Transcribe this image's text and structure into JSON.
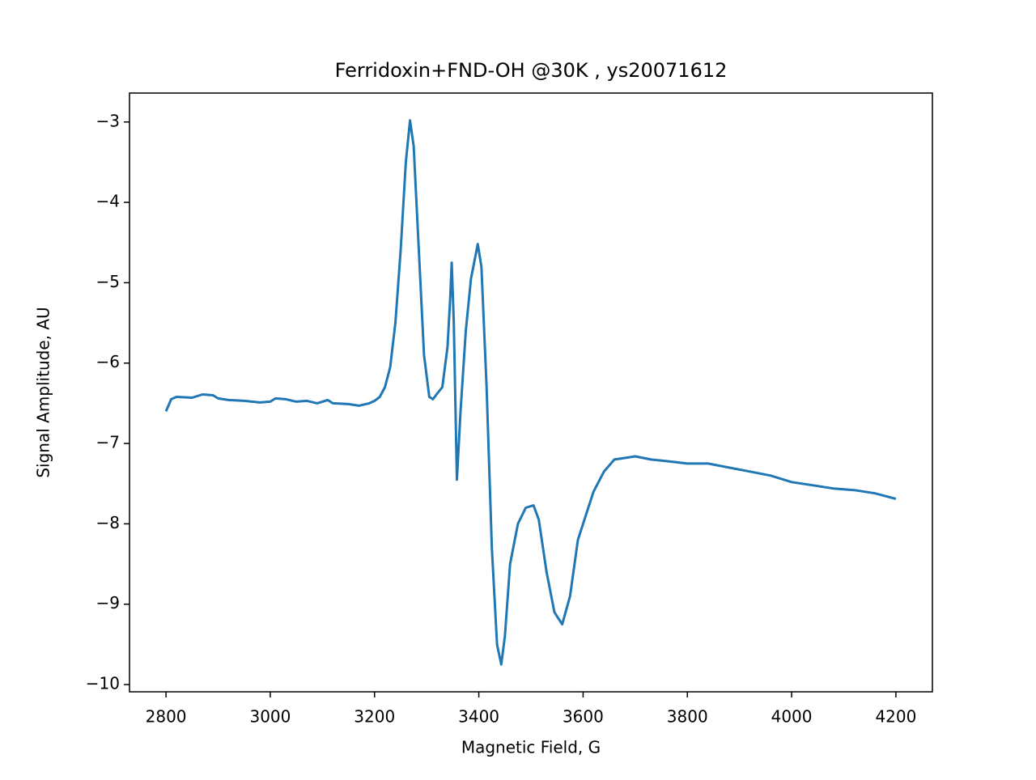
{
  "chart_data": {
    "type": "line",
    "title": "Ferridoxin+FND-OH @30K , ys20071612",
    "x_label": "Magnetic Field, G",
    "y_label": "Signal Amplitude, AU",
    "x": [
      2800,
      2810,
      2820,
      2850,
      2870,
      2890,
      2900,
      2920,
      2950,
      2980,
      3000,
      3010,
      3030,
      3050,
      3070,
      3090,
      3110,
      3120,
      3150,
      3170,
      3190,
      3200,
      3210,
      3220,
      3230,
      3240,
      3250,
      3260,
      3268,
      3275,
      3285,
      3295,
      3305,
      3312,
      3320,
      3330,
      3340,
      3345,
      3348,
      3352,
      3358,
      3365,
      3375,
      3385,
      3398,
      3405,
      3415,
      3425,
      3435,
      3443,
      3450,
      3460,
      3475,
      3490,
      3505,
      3515,
      3530,
      3545,
      3560,
      3575,
      3590,
      3605,
      3620,
      3640,
      3660,
      3680,
      3700,
      3730,
      3760,
      3800,
      3840,
      3880,
      3920,
      3960,
      4000,
      4040,
      4080,
      4120,
      4160,
      4200
    ],
    "series": [
      {
        "color": "#1f77b4",
        "values": [
          -6.6,
          -6.45,
          -6.42,
          -6.43,
          -6.39,
          -6.4,
          -6.44,
          -6.46,
          -6.47,
          -6.49,
          -6.48,
          -6.44,
          -6.45,
          -6.48,
          -6.47,
          -6.5,
          -6.46,
          -6.5,
          -6.51,
          -6.53,
          -6.5,
          -6.47,
          -6.42,
          -6.3,
          -6.05,
          -5.5,
          -4.6,
          -3.5,
          -2.98,
          -3.3,
          -4.6,
          -5.9,
          -6.42,
          -6.45,
          -6.38,
          -6.3,
          -5.8,
          -5.2,
          -4.75,
          -5.5,
          -7.45,
          -6.6,
          -5.6,
          -4.95,
          -4.52,
          -4.8,
          -6.3,
          -8.3,
          -9.5,
          -9.75,
          -9.4,
          -8.5,
          -8.0,
          -7.8,
          -7.77,
          -7.95,
          -8.6,
          -9.1,
          -9.25,
          -8.9,
          -8.2,
          -7.9,
          -7.6,
          -7.35,
          -7.2,
          -7.18,
          -7.16,
          -7.2,
          -7.22,
          -7.25,
          -7.25,
          -7.3,
          -7.35,
          -7.4,
          -7.48,
          -7.52,
          -7.56,
          -7.58,
          -7.62,
          -7.69
        ]
      }
    ],
    "xlim": [
      2730,
      4270
    ],
    "ylim": [
      -10.09,
      -2.64
    ],
    "xticks": [
      2800,
      3000,
      3200,
      3400,
      3600,
      3800,
      4000,
      4200
    ],
    "yticks": [
      {
        "value": -3,
        "label": "−3"
      },
      {
        "value": -4,
        "label": "−4"
      },
      {
        "value": -5,
        "label": "−5"
      },
      {
        "value": -6,
        "label": "−6"
      },
      {
        "value": -7,
        "label": "−7"
      },
      {
        "value": -8,
        "label": "−8"
      },
      {
        "value": -9,
        "label": "−9"
      },
      {
        "value": -10,
        "label": "−10"
      }
    ]
  }
}
